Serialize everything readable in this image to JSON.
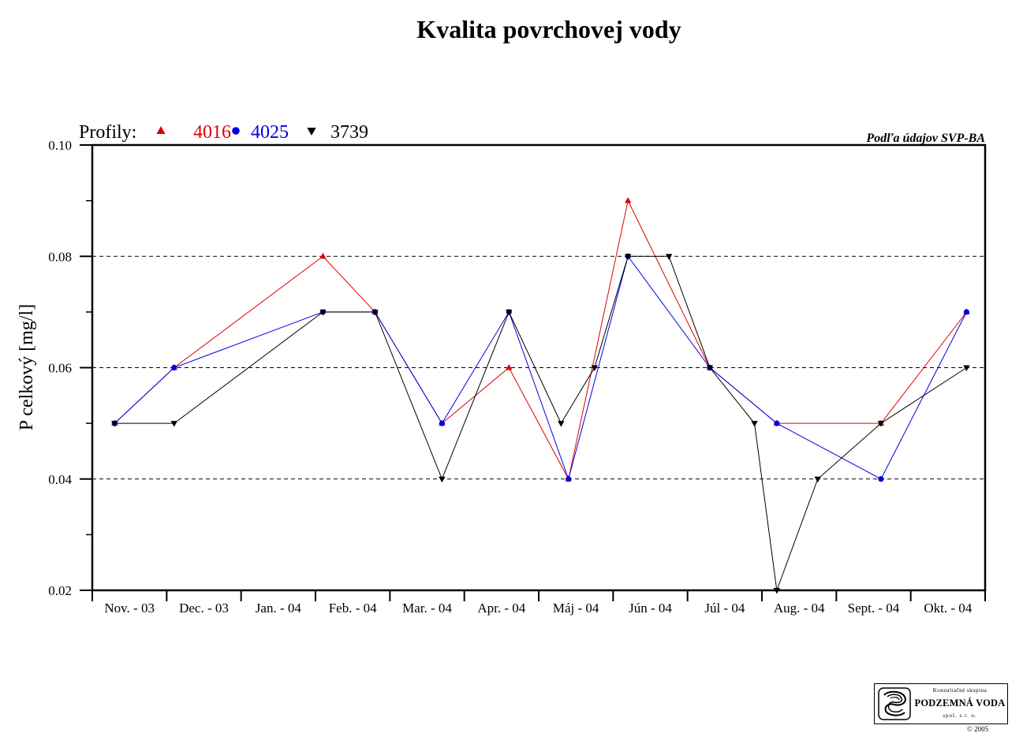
{
  "chart_data": {
    "type": "line",
    "title": "Kvalita povrchovej vody",
    "subtitle": "Podľa údajov SVP-BA",
    "legend_title": "Profily:",
    "legend_placement": "top-left",
    "ylabel": "P celkový [mg/l]",
    "ylim": [
      0.02,
      0.1
    ],
    "yticks": [
      "0.02",
      "0.04",
      "0.06",
      "0.08",
      "0.10"
    ],
    "grid": "dashed-horizontal",
    "categories": [
      "Nov. - 03",
      "Dec. - 03",
      "Jan. - 04",
      "Feb. - 04",
      "Mar. - 04",
      "Apr. - 04",
      "Máj - 04",
      "Jún - 04",
      "Júl - 04",
      "Aug. - 04",
      "Sept. - 04",
      "Okt. - 04"
    ],
    "series": [
      {
        "name": "4016",
        "color": "#e00000",
        "marker": "triangle-up",
        "points": [
          [
            0.3,
            0.05
          ],
          [
            1.1,
            0.06
          ],
          [
            3.1,
            0.08
          ],
          [
            3.8,
            0.07
          ],
          [
            4.7,
            0.05
          ],
          [
            5.6,
            0.06
          ],
          [
            6.4,
            0.04
          ],
          [
            7.2,
            0.09
          ],
          [
            8.3,
            0.06
          ],
          [
            9.2,
            0.05
          ],
          [
            10.6,
            0.05
          ],
          [
            11.75,
            0.07
          ]
        ]
      },
      {
        "name": "4025",
        "color": "#0000e0",
        "marker": "circle",
        "points": [
          [
            0.3,
            0.05
          ],
          [
            1.1,
            0.06
          ],
          [
            3.1,
            0.07
          ],
          [
            3.8,
            0.07
          ],
          [
            4.7,
            0.05
          ],
          [
            5.6,
            0.07
          ],
          [
            6.4,
            0.04
          ],
          [
            7.2,
            0.08
          ],
          [
            8.3,
            0.06
          ],
          [
            9.2,
            0.05
          ],
          [
            10.6,
            0.04
          ],
          [
            11.75,
            0.07
          ]
        ]
      },
      {
        "name": "3739",
        "color": "#000000",
        "marker": "triangle-down",
        "points": [
          [
            0.3,
            0.05
          ],
          [
            1.1,
            0.05
          ],
          [
            3.1,
            0.07
          ],
          [
            3.8,
            0.07
          ],
          [
            4.7,
            0.04
          ],
          [
            5.6,
            0.07
          ],
          [
            6.3,
            0.05
          ],
          [
            6.75,
            0.06
          ],
          [
            7.2,
            0.08
          ],
          [
            7.75,
            0.08
          ],
          [
            8.3,
            0.06
          ],
          [
            8.9,
            0.05
          ],
          [
            9.2,
            0.02
          ],
          [
            9.75,
            0.04
          ],
          [
            10.6,
            0.05
          ],
          [
            11.75,
            0.06
          ]
        ]
      }
    ]
  },
  "logo": {
    "top": "Konzultačné skupina",
    "name": "PODZEMNÁ VODA",
    "sub": "spol. s r. o."
  },
  "copyright": "© 2005"
}
